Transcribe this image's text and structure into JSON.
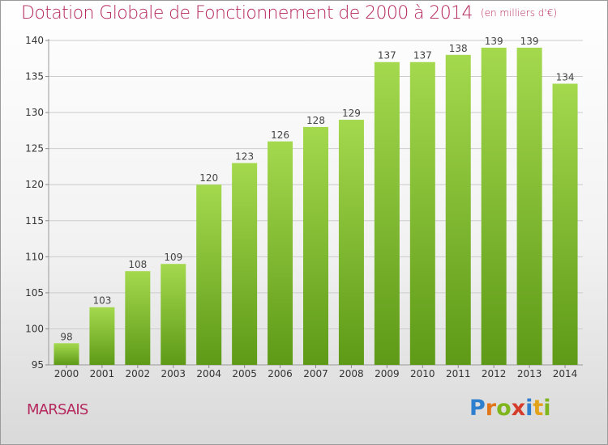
{
  "title": "Dotation Globale de Fonctionnement de 2000 à 2014",
  "unit_note": "(en milliers d'€)",
  "commune": "MARSAIS",
  "logo": {
    "letters": [
      "P",
      "r",
      "o",
      "x",
      "i",
      "t",
      "i"
    ]
  },
  "colors": {
    "title": "#b5285d",
    "bar_light": "#a4d94e",
    "bar_dark": "#5e9a17",
    "grid": "#cccccc"
  },
  "chart_data": {
    "type": "bar",
    "title": "Dotation Globale de Fonctionnement de 2000 à 2014",
    "xlabel": "",
    "ylabel": "",
    "categories": [
      "2000",
      "2001",
      "2002",
      "2003",
      "2004",
      "2005",
      "2006",
      "2007",
      "2008",
      "2009",
      "2010",
      "2011",
      "2012",
      "2013",
      "2014"
    ],
    "values": [
      98,
      103,
      108,
      109,
      120,
      123,
      126,
      128,
      129,
      137,
      137,
      138,
      139,
      139,
      134
    ],
    "ylim": [
      95,
      140
    ],
    "yticks": [
      95,
      100,
      105,
      110,
      115,
      120,
      125,
      130,
      135,
      140
    ],
    "grid": true,
    "data_labels": true
  }
}
